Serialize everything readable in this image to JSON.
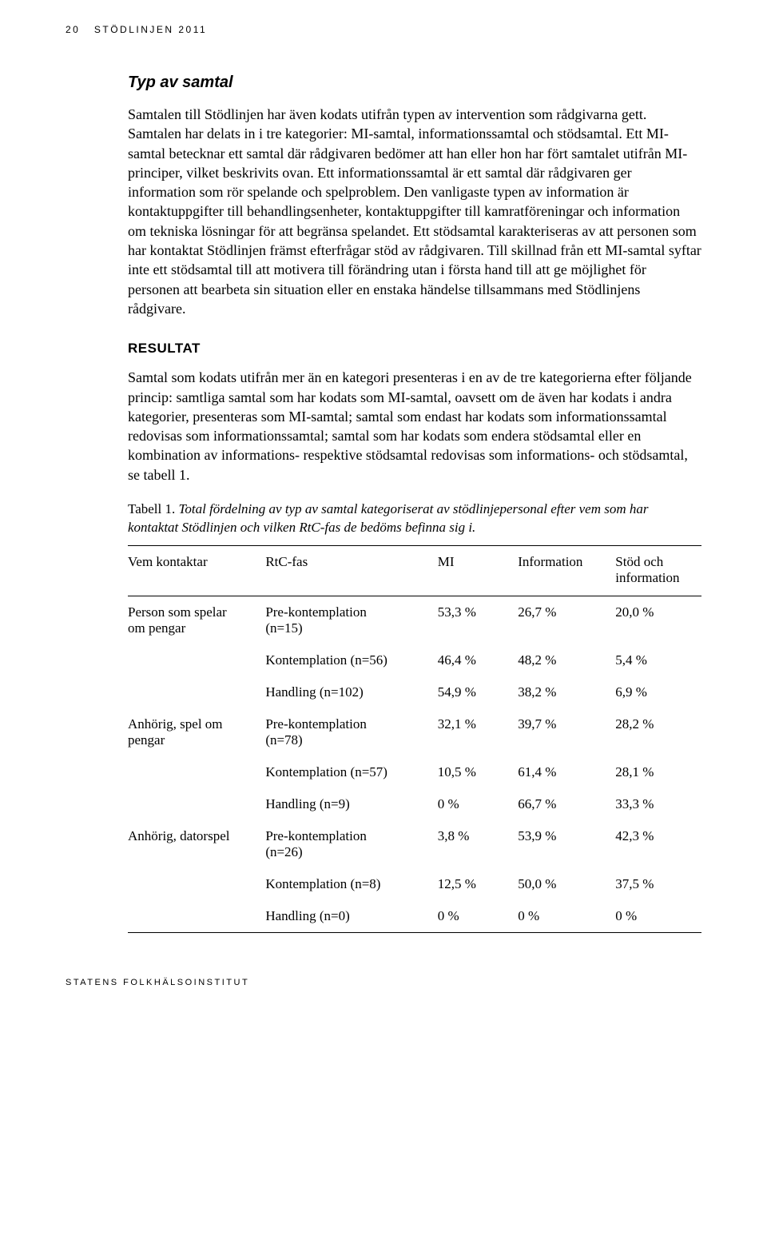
{
  "header": {
    "page_number": "20",
    "running_title": "STÖDLINJEN 2011"
  },
  "section1": {
    "title": "Typ av samtal",
    "body": "Samtalen till Stödlinjen har även kodats utifrån typen av intervention som rådgivarna gett. Samtalen har delats in i tre kategorier: MI-samtal, informationssamtal och stödsamtal. Ett MI-samtal betecknar ett samtal där rådgivaren bedömer att han eller hon har fört samtalet utifrån MI-principer, vilket beskrivits ovan. Ett informationssamtal är ett samtal där rådgivaren ger information som rör spelande och spelproblem. Den vanligaste typen av information är kontaktuppgifter till behandlingsenheter, kontaktuppgifter till kamratföreningar och information om tekniska lösningar för att begränsa spelandet. Ett stödsamtal karakteriseras av att personen som har kontaktat Stödlinjen främst efterfrågar stöd av rådgivaren. Till skillnad från ett MI-samtal syftar inte ett stödsamtal till att motivera till förändring utan i första hand till att ge möjlighet för personen att bearbeta sin situation eller en enstaka händelse tillsammans med Stödlinjens rådgivare."
  },
  "section2": {
    "title": "RESULTAT",
    "body": "Samtal som kodats utifrån mer än en kategori presenteras i en av de tre kategorierna efter följande princip: samtliga samtal som har kodats som MI-samtal, oavsett om de även har kodats i andra kategorier, presenteras som MI-samtal; samtal som endast har kodats som informationssamtal redovisas som informationssamtal; samtal som har kodats som endera stödsamtal eller en kombination av informations- respektive stödsamtal redovisas som informations- och stödsamtal, se tabell 1."
  },
  "table": {
    "caption_lead": "Tabell 1. ",
    "caption_italic": "Total fördelning av typ av samtal kategoriserat av stödlinjepersonal efter vem som har kontaktat Stödlinjen och vilken RtC-fas de bedöms befinna sig i.",
    "columns": {
      "who": "Vem kontaktar",
      "rtc": "RtC-fas",
      "mi": "MI",
      "info": "Information",
      "stod_line1": "Stöd och",
      "stod_line2": "information"
    },
    "groups": [
      {
        "who_line1": "Person som spelar",
        "who_line2": "om pengar",
        "rows": [
          {
            "rtc_line1": "Pre-kontemplation",
            "rtc_line2": "(n=15)",
            "mi": "53,3 %",
            "info": "26,7 %",
            "stod": "20,0 %"
          },
          {
            "rtc_line1": "Kontemplation (n=56)",
            "rtc_line2": "",
            "mi": "46,4 %",
            "info": "48,2 %",
            "stod": "5,4 %"
          },
          {
            "rtc_line1": "Handling (n=102)",
            "rtc_line2": "",
            "mi": "54,9 %",
            "info": "38,2 %",
            "stod": "6,9 %"
          }
        ]
      },
      {
        "who_line1": "Anhörig, spel om",
        "who_line2": "pengar",
        "rows": [
          {
            "rtc_line1": "Pre-kontemplation",
            "rtc_line2": "(n=78)",
            "mi": "32,1 %",
            "info": "39,7 %",
            "stod": "28,2 %"
          },
          {
            "rtc_line1": "Kontemplation (n=57)",
            "rtc_line2": "",
            "mi": "10,5 %",
            "info": "61,4 %",
            "stod": "28,1 %"
          },
          {
            "rtc_line1": "Handling (n=9)",
            "rtc_line2": "",
            "mi": "0 %",
            "info": "66,7 %",
            "stod": "33,3 %"
          }
        ]
      },
      {
        "who_line1": "Anhörig, datorspel",
        "who_line2": "",
        "rows": [
          {
            "rtc_line1": "Pre-kontemplation",
            "rtc_line2": "(n=26)",
            "mi": "3,8 %",
            "info": "53,9 %",
            "stod": "42,3 %"
          },
          {
            "rtc_line1": "Kontemplation (n=8)",
            "rtc_line2": "",
            "mi": "12,5 %",
            "info": "50,0 %",
            "stod": "37,5 %"
          },
          {
            "rtc_line1": "Handling (n=0)",
            "rtc_line2": "",
            "mi": "0 %",
            "info": "0 %",
            "stod": "0 %"
          }
        ]
      }
    ]
  },
  "footer": {
    "text": "STATENS FOLKHÄLSOINSTITUT"
  }
}
